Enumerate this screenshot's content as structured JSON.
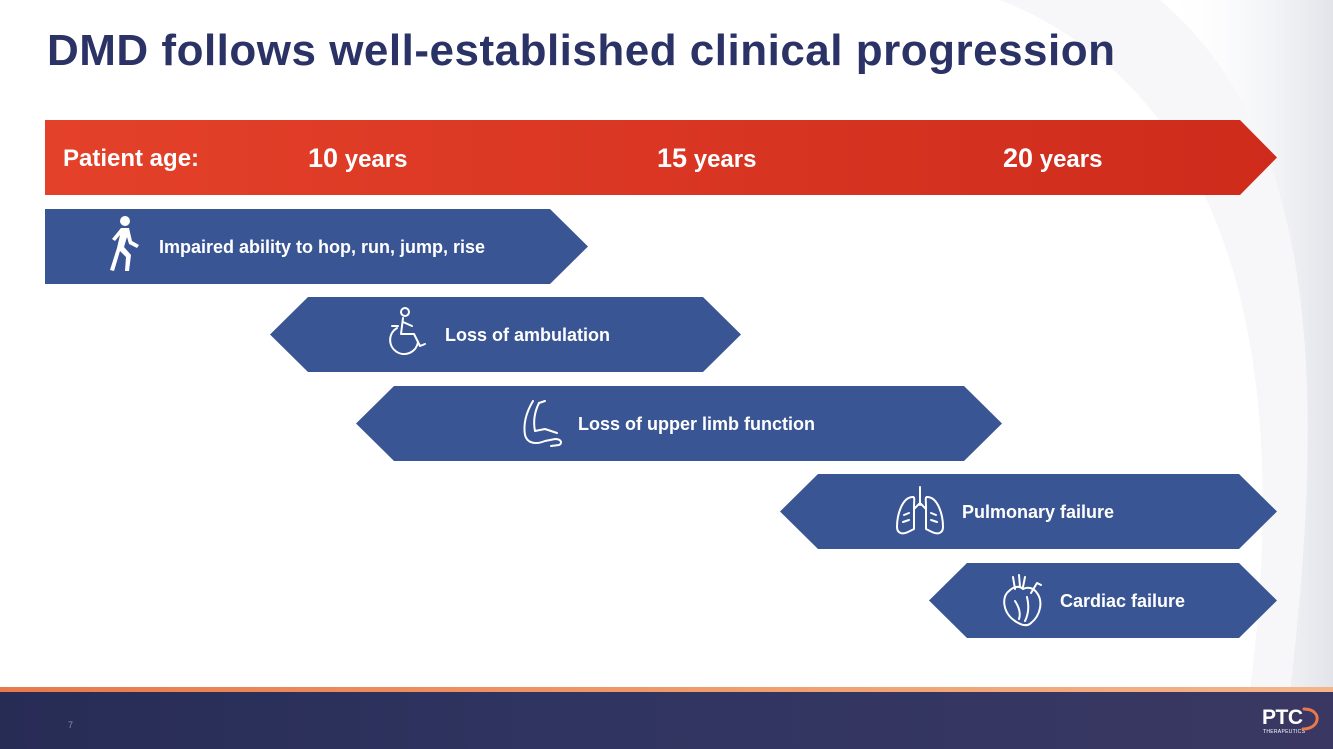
{
  "title": "DMD follows well-established clinical progression",
  "colors": {
    "title": "#2b3266",
    "age_bar": "#e04127",
    "stage_fill": "#3a5593",
    "footer": "#2b3060",
    "footer_accent": "#e8794b"
  },
  "age_bar": {
    "label": "Patient age:",
    "ticks": [
      {
        "number": "10",
        "unit": " years"
      },
      {
        "number": "15",
        "unit": " years"
      },
      {
        "number": "20",
        "unit": " years"
      }
    ]
  },
  "stages": [
    {
      "label": "Impaired ability to hop, run, jump, rise",
      "icon": "running-person-icon"
    },
    {
      "label": "Loss of ambulation",
      "icon": "wheelchair-icon"
    },
    {
      "label": "Loss of upper limb function",
      "icon": "arm-icon"
    },
    {
      "label": "Pulmonary failure",
      "icon": "lungs-icon"
    },
    {
      "label": "Cardiac failure",
      "icon": "heart-icon"
    }
  ],
  "footer": {
    "page_number": "7",
    "logo_text": "PTC",
    "logo_subtext": "THERAPEUTICS"
  }
}
